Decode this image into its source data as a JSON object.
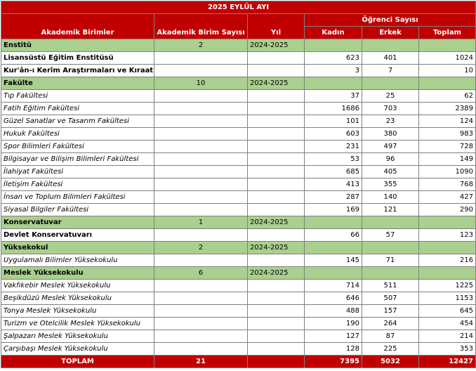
{
  "title": "2025 EYLÜL AYI",
  "headers": {
    "academic_units": "Akademik Birimler",
    "unit_count": "Akademik Birim Sayısı",
    "year": "Yıl",
    "student_count": "Öğrenci Sayısı",
    "female": "Kadın",
    "male": "Erkek",
    "total": "Toplam"
  },
  "sections": [
    {
      "name": "Enstitü",
      "count": "2",
      "year": "2024-2025",
      "bold_items": true,
      "items": [
        {
          "name": "Lisansüstü Eğitim Enstitüsü",
          "female": "623",
          "male": "401",
          "total": "1024"
        },
        {
          "name": "Kur'ân-ı Kerîm Araştırmaları ve Kıraat İlmi Enstitüsü",
          "female": "3",
          "male": "7",
          "total": "10"
        }
      ]
    },
    {
      "name": "Fakülte",
      "count": "10",
      "year": "2024-2025",
      "bold_items": false,
      "items": [
        {
          "name": "Tıp Fakültesi",
          "female": "37",
          "male": "25",
          "total": "62"
        },
        {
          "name": "Fatih Eğitim Fakültesi",
          "female": "1686",
          "male": "703",
          "total": "2389"
        },
        {
          "name": "Güzel Sanatlar ve Tasarım Fakültesi",
          "female": "101",
          "male": "23",
          "total": "124"
        },
        {
          "name": "Hukuk Fakültesi",
          "female": "603",
          "male": "380",
          "total": "983"
        },
        {
          "name": "Spor Bilimleri Fakültesi",
          "female": "231",
          "male": "497",
          "total": "728"
        },
        {
          "name": "Bilgisayar ve Bilişim Bilimleri Fakültesi",
          "female": "53",
          "male": "96",
          "total": "149"
        },
        {
          "name": "İlahiyat Fakültesi",
          "female": "685",
          "male": "405",
          "total": "1090"
        },
        {
          "name": "İletişim Fakültesi",
          "female": "413",
          "male": "355",
          "total": "768"
        },
        {
          "name": "İnsan ve Toplum Bilimleri Fakültesi",
          "female": "287",
          "male": "140",
          "total": "427"
        },
        {
          "name": "Siyasal Bilgiler Fakültesi",
          "female": "169",
          "male": "121",
          "total": "290"
        }
      ]
    },
    {
      "name": "Konservatuvar",
      "count": "1",
      "year": "2024-2025",
      "bold_items": true,
      "items": [
        {
          "name": "Devlet Konservatuvarı",
          "female": "66",
          "male": "57",
          "total": "123"
        }
      ]
    },
    {
      "name": "Yüksekokul",
      "count": "2",
      "year": "2024-2025",
      "bold_items": false,
      "items": [
        {
          "name": "Uygulamalı Bilimler Yüksekokulu",
          "female": "145",
          "male": "71",
          "total": "216"
        }
      ]
    },
    {
      "name": "Meslek Yüksekokulu",
      "count": "6",
      "year": "2024-2025",
      "bold_items": false,
      "items": [
        {
          "name": "Vakfıkebir Meslek Yüksekokulu",
          "female": "714",
          "male": "511",
          "total": "1225"
        },
        {
          "name": "Beşikdüzü Meslek Yüksekokulu",
          "female": "646",
          "male": "507",
          "total": "1153"
        },
        {
          "name": "Tonya Meslek Yüksekokulu",
          "female": "488",
          "male": "157",
          "total": "645"
        },
        {
          "name": "Turizm ve Otelcilik Meslek Yüksekokulu",
          "female": "190",
          "male": "264",
          "total": "454"
        },
        {
          "name": "Şalpazarı Meslek Yüksekokulu",
          "female": "127",
          "male": "87",
          "total": "214"
        },
        {
          "name": "Çarşıbaşı Meslek Yüksekokulu",
          "female": "128",
          "male": "225",
          "total": "353"
        }
      ]
    }
  ],
  "totals": {
    "label": "TOPLAM",
    "count": "21",
    "female": "7395",
    "male": "5032",
    "total": "12427"
  }
}
